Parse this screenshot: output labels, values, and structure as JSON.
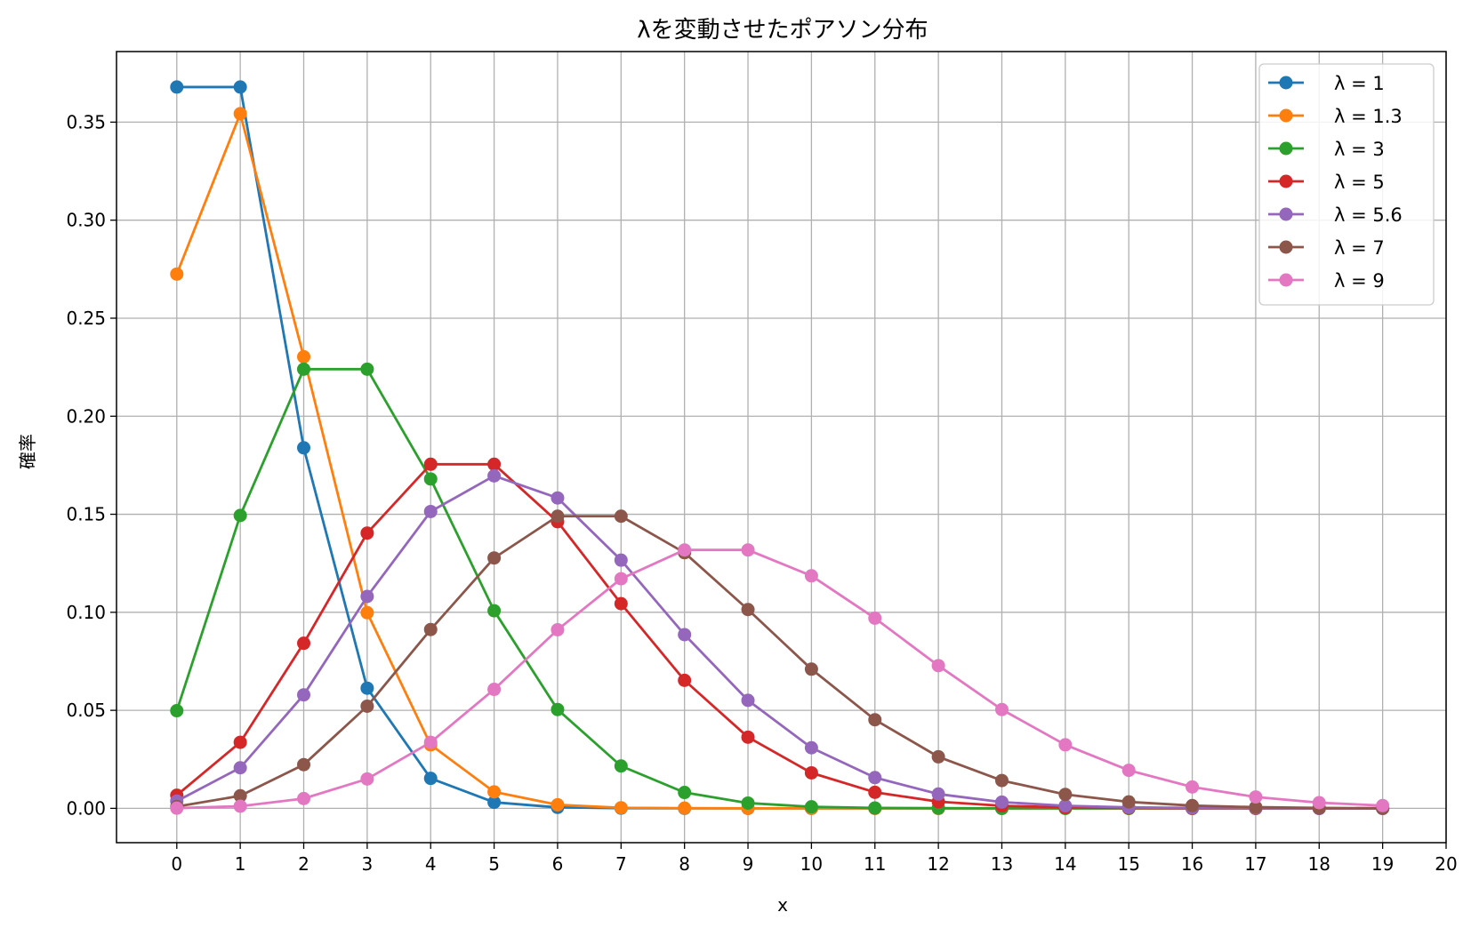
{
  "chart_data": {
    "type": "line",
    "title": "λを変動させたポアソン分布",
    "xlabel": "x",
    "ylabel": "確率",
    "xlim": [
      -0.95,
      20
    ],
    "ylim": [
      -0.0175,
      0.386
    ],
    "xticks": [
      0,
      1,
      2,
      3,
      4,
      5,
      6,
      7,
      8,
      9,
      10,
      11,
      12,
      13,
      14,
      15,
      16,
      17,
      18,
      19,
      20
    ],
    "yticks": [
      0.0,
      0.05,
      0.1,
      0.15,
      0.2,
      0.25,
      0.3,
      0.35
    ],
    "ytick_labels": [
      "0.00",
      "0.05",
      "0.10",
      "0.15",
      "0.20",
      "0.25",
      "0.30",
      "0.35"
    ],
    "grid": true,
    "legend_position": "top-right",
    "x": [
      0,
      1,
      2,
      3,
      4,
      5,
      6,
      7,
      8,
      9,
      10,
      11,
      12,
      13,
      14,
      15,
      16,
      17,
      18,
      19
    ],
    "series": [
      {
        "name": "λ = 1",
        "color": "#1f77b4",
        "values": [
          0.3679,
          0.3679,
          0.1839,
          0.0613,
          0.0153,
          0.0031,
          0.0005,
          0.0001,
          0.0,
          0.0,
          0.0,
          0.0,
          0.0,
          0.0,
          0.0,
          0.0,
          0.0,
          0.0,
          0.0,
          0.0
        ]
      },
      {
        "name": "λ = 1.3",
        "color": "#ff7f0e",
        "values": [
          0.2725,
          0.3543,
          0.2303,
          0.0998,
          0.0324,
          0.0084,
          0.0018,
          0.0003,
          0.0001,
          0.0,
          0.0,
          0.0,
          0.0,
          0.0,
          0.0,
          0.0,
          0.0,
          0.0,
          0.0,
          0.0
        ]
      },
      {
        "name": "λ = 3",
        "color": "#2ca02c",
        "values": [
          0.0498,
          0.1494,
          0.224,
          0.224,
          0.168,
          0.1008,
          0.0504,
          0.0216,
          0.0081,
          0.0027,
          0.0008,
          0.0002,
          0.0001,
          0.0,
          0.0,
          0.0,
          0.0,
          0.0,
          0.0,
          0.0
        ]
      },
      {
        "name": "λ = 5",
        "color": "#d62728",
        "values": [
          0.0067,
          0.0337,
          0.0842,
          0.1404,
          0.1755,
          0.1755,
          0.1462,
          0.1044,
          0.0653,
          0.0363,
          0.0181,
          0.0082,
          0.0034,
          0.0013,
          0.0005,
          0.0002,
          0.0,
          0.0,
          0.0,
          0.0
        ]
      },
      {
        "name": "λ = 5.6",
        "color": "#9467bd",
        "values": [
          0.0037,
          0.0207,
          0.0579,
          0.1081,
          0.1514,
          0.1696,
          0.1583,
          0.1266,
          0.0886,
          0.0551,
          0.0309,
          0.0157,
          0.0073,
          0.0032,
          0.0013,
          0.0005,
          0.0002,
          0.0001,
          0.0,
          0.0
        ]
      },
      {
        "name": "λ = 7",
        "color": "#8c564b",
        "values": [
          0.0009,
          0.0064,
          0.0223,
          0.0521,
          0.0912,
          0.1277,
          0.149,
          0.149,
          0.1304,
          0.1014,
          0.071,
          0.0452,
          0.0263,
          0.0142,
          0.0071,
          0.0033,
          0.0014,
          0.0006,
          0.0002,
          0.0001
        ]
      },
      {
        "name": "λ = 9",
        "color": "#e377c2",
        "values": [
          0.0001,
          0.0011,
          0.005,
          0.015,
          0.0337,
          0.0607,
          0.0911,
          0.1171,
          0.1318,
          0.1318,
          0.1186,
          0.097,
          0.0728,
          0.0504,
          0.0324,
          0.0194,
          0.0109,
          0.0058,
          0.0029,
          0.0014
        ]
      }
    ]
  }
}
